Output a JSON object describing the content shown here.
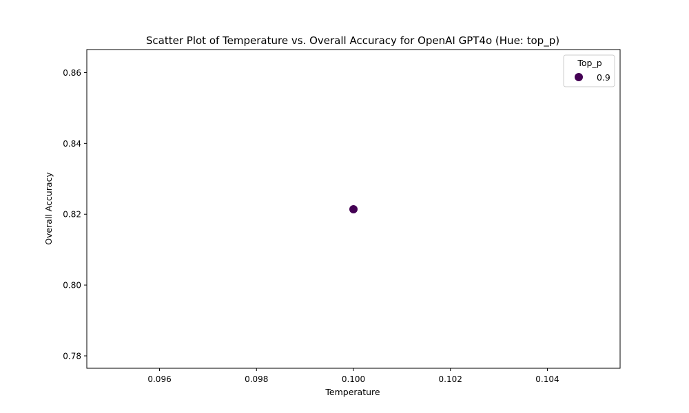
{
  "colors": {
    "series_0.9": "#440154"
  },
  "chart_data": {
    "type": "scatter",
    "title": "Scatter Plot of Temperature vs. Overall Accuracy for OpenAI GPT4o (Hue: top_p)",
    "xlabel": "Temperature",
    "ylabel": "Overall Accuracy",
    "xlim": [
      0.0945,
      0.1055
    ],
    "ylim": [
      0.7765,
      0.8665
    ],
    "xticks": [
      0.096,
      0.098,
      0.1,
      0.102,
      0.104
    ],
    "xtick_labels": [
      "0.096",
      "0.098",
      "0.100",
      "0.102",
      "0.104"
    ],
    "yticks": [
      0.78,
      0.8,
      0.82,
      0.84,
      0.86
    ],
    "ytick_labels": [
      "0.78",
      "0.80",
      "0.82",
      "0.84",
      "0.86"
    ],
    "grid": false,
    "legend": {
      "title": "Top_p",
      "placement": "top-right",
      "entries": [
        {
          "label": "0.9",
          "color": "#440154"
        }
      ]
    },
    "series": [
      {
        "hue": "0.9",
        "color": "#440154",
        "points": [
          {
            "x": 0.1,
            "y": 0.8214
          }
        ]
      }
    ]
  }
}
